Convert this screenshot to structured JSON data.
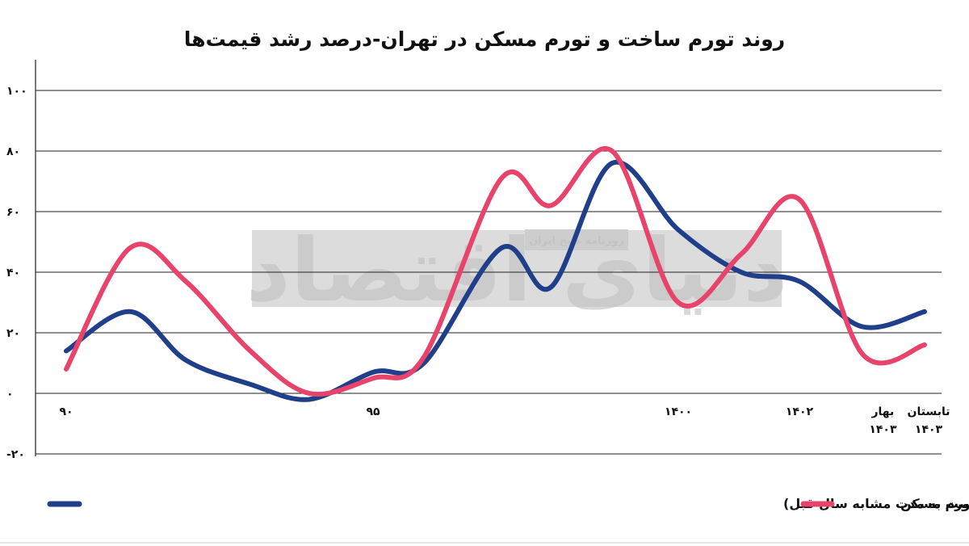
{
  "chart_data": {
    "type": "line",
    "title": "روند تورم ساخت و تورم مسکن در تهران-درصد رشد قیمت‌ها",
    "ylim": [
      -20,
      100
    ],
    "yticks": [
      {
        "value": 100,
        "label": "۱۰۰"
      },
      {
        "value": 80,
        "label": "۸۰"
      },
      {
        "value": 60,
        "label": "۶۰"
      },
      {
        "value": 40,
        "label": "۴۰"
      },
      {
        "value": 20,
        "label": "۲۰"
      },
      {
        "value": 0,
        "label": "۰"
      },
      {
        "value": -20,
        "label": "-۲۰"
      }
    ],
    "xlim": [
      90,
      1405
    ],
    "xticks": [
      {
        "x": 90,
        "lines": [
          "۹۰"
        ]
      },
      {
        "x": 95,
        "lines": [
          "۹۵"
        ]
      },
      {
        "x": 1400,
        "lines": [
          "۱۴۰۰"
        ]
      },
      {
        "x": 1402,
        "lines": [
          "۱۴۰۲"
        ]
      },
      {
        "x": 1403.33,
        "lines": [
          "بهار",
          "۱۴۰۳"
        ]
      },
      {
        "x": 1404.33,
        "lines": [
          "تابستان",
          "۱۴۰۳"
        ]
      }
    ],
    "grid": true,
    "legend_position": "bottom",
    "series": [
      {
        "name": "تورم ساخت مسکن در تهران (درصد تغییرات شاخص قیمت مصالح ساختمانی و خدمات نسبت به مدت مشابه سال قبل)",
        "color": "#1f3f8a",
        "points": [
          [
            90,
            14
          ],
          [
            91,
            27
          ],
          [
            92,
            11
          ],
          [
            93,
            3
          ],
          [
            94,
            -2
          ],
          [
            95,
            7
          ],
          [
            96,
            10
          ],
          [
            97,
            48
          ],
          [
            98,
            35
          ],
          [
            99,
            76
          ],
          [
            1400,
            54
          ],
          [
            1401,
            40
          ],
          [
            1402,
            37
          ],
          [
            1403,
            22
          ],
          [
            1404,
            27
          ]
        ]
      },
      {
        "name": "تورم مسکن",
        "color": "#e8436a",
        "points": [
          [
            90,
            8
          ],
          [
            91,
            48
          ],
          [
            92,
            37
          ],
          [
            93,
            14
          ],
          [
            94,
            0
          ],
          [
            95,
            5
          ],
          [
            96,
            12
          ],
          [
            97,
            71
          ],
          [
            98,
            62
          ],
          [
            99,
            80
          ],
          [
            1400,
            30
          ],
          [
            1401,
            46
          ],
          [
            1402,
            64
          ],
          [
            1403,
            13
          ],
          [
            1404,
            16
          ]
        ]
      }
    ]
  },
  "watermark": {
    "main": "دنیای اقتصاد",
    "sub": "روزنامه صبح ایران"
  }
}
